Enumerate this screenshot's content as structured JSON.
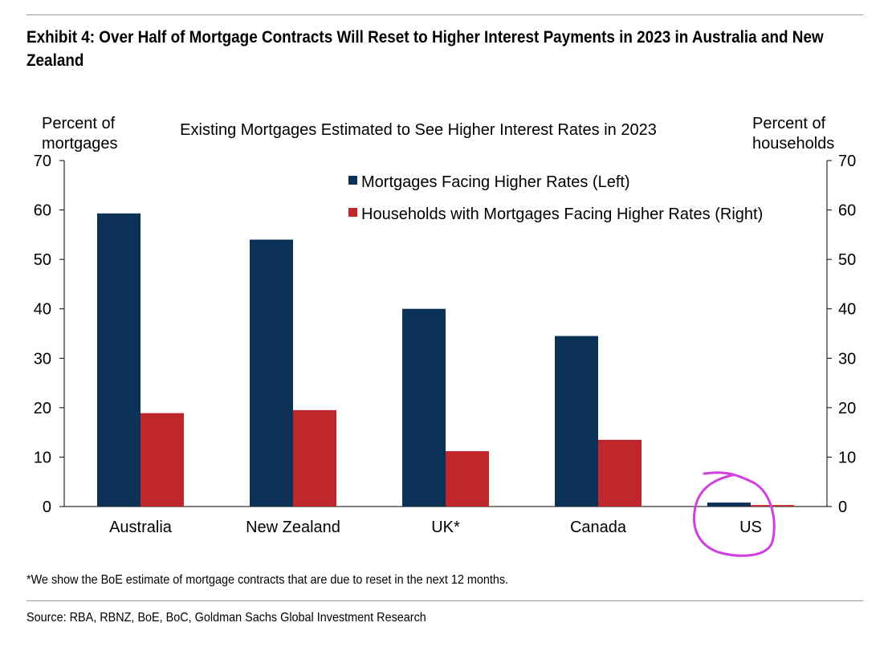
{
  "exhibit_title": "Exhibit 4: Over Half of Mortgage Contracts Will Reset to Higher Interest Payments in 2023 in Australia and New Zealand",
  "footnote": "*We show the BoE estimate of mortgage contracts that are due to reset in the next 12 months.",
  "source": "Source: RBA, RBNZ, BoE, BoC, Goldman Sachs Global Investment Research",
  "annotation": {
    "type": "hand-drawn circle",
    "target": "US",
    "color": "#d040e0"
  },
  "chart_data": {
    "type": "bar",
    "title": "Existing Mortgages Estimated to See Higher Interest Rates in 2023",
    "ylabel_left": [
      "Percent of",
      "mortgages"
    ],
    "ylabel_right": [
      "Percent of",
      "households"
    ],
    "categories": [
      "Australia",
      "New Zealand",
      "UK*",
      "Canada",
      "US"
    ],
    "ylim": [
      0,
      70
    ],
    "yticks": [
      0,
      10,
      20,
      30,
      40,
      50,
      60,
      70
    ],
    "grid": false,
    "legend_position": "top-right",
    "series": [
      {
        "name": "Mortgages Facing Higher Rates (Left)",
        "axis": "left",
        "color": "#0b3157",
        "values": [
          59.3,
          54,
          40,
          34.5,
          0.8
        ]
      },
      {
        "name": "Households with Mortgages Facing Higher Rates (Right)",
        "axis": "right",
        "color": "#c0272d",
        "values": [
          18.9,
          19.5,
          11.2,
          13.5,
          0.3
        ]
      }
    ]
  }
}
